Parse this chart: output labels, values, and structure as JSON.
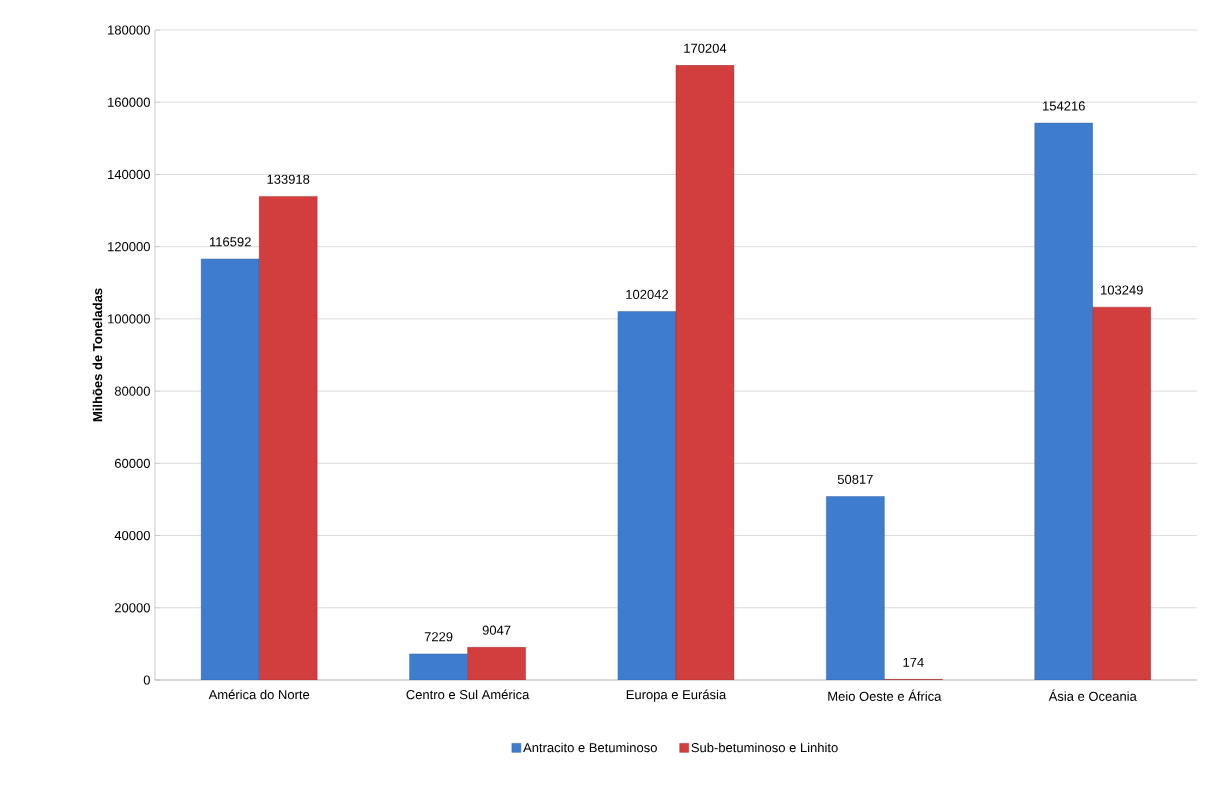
{
  "chart_data": {
    "type": "bar",
    "ylabel": "Milhões de Toneladas",
    "categories": [
      "América do Norte",
      "Centro e Sul América",
      "Europa e Eurásia",
      "Meio Oeste e África",
      "Ásia e Oceania"
    ],
    "series": [
      {
        "name": "Antracito e Betuminoso",
        "color": "#3d7ccf",
        "values": [
          116592,
          7229,
          102042,
          50817,
          154216
        ]
      },
      {
        "name": "Sub-betuminoso e Linhito",
        "color": "#d23d3d",
        "values": [
          133918,
          9047,
          170204,
          174,
          103249
        ]
      }
    ],
    "ylim": [
      0,
      180000
    ],
    "yticks": [
      0,
      20000,
      40000,
      60000,
      80000,
      100000,
      120000,
      140000,
      160000,
      180000
    ],
    "grid": "y",
    "legend": "bottom",
    "data_labels": true
  }
}
